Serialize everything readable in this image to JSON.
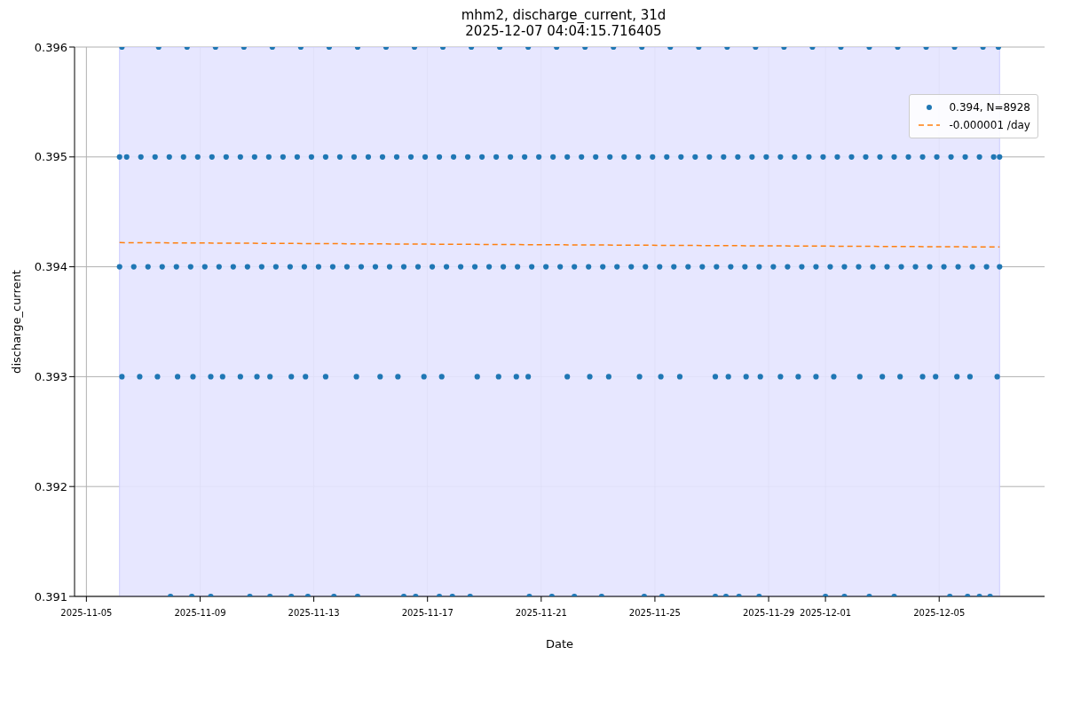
{
  "chart_data": {
    "type": "scatter",
    "title": "mhm2, discharge_current, 31d",
    "subtitle": "2025-12-07 04:04:15.716405",
    "xlabel": "Date",
    "ylabel": "discharge_current",
    "xlim": [
      "2025-11-04T14:00",
      "2025-12-08T17:00"
    ],
    "xticks": [
      "2025-11-05",
      "2025-11-09",
      "2025-11-13",
      "2025-11-17",
      "2025-11-21",
      "2025-11-25",
      "2025-11-29",
      "2025-12-01",
      "2025-12-05"
    ],
    "ylim": [
      0.391,
      0.396
    ],
    "yticks": [
      0.391,
      0.392,
      0.393,
      0.394,
      0.395,
      0.396
    ],
    "grid": true,
    "legend": "top right",
    "marker": "circle",
    "bands": [
      {
        "axis": "x",
        "from": "2025-11-06T04:00",
        "to": "2025-12-07T03:00",
        "color": "#e4e4ff"
      }
    ],
    "series": [
      {
        "name": "0.394, N=8928",
        "color": "#1f77b4",
        "x": [
          "2025-11-06T04:00",
          "2025-11-06T16:00",
          "2025-11-07T04:00",
          "2025-11-07T16:00",
          "2025-11-08T04:00",
          "2025-11-08T16:00",
          "2025-11-09T04:00",
          "2025-11-09T16:00",
          "2025-11-10T04:00",
          "2025-11-10T16:00",
          "2025-11-11T04:00",
          "2025-11-11T16:00",
          "2025-11-12T04:00",
          "2025-11-12T16:00",
          "2025-11-13T04:00",
          "2025-11-13T16:00",
          "2025-11-14T04:00",
          "2025-11-14T16:00",
          "2025-11-15T04:00",
          "2025-11-15T16:00",
          "2025-11-16T04:00",
          "2025-11-16T16:00",
          "2025-11-17T04:00",
          "2025-11-17T16:00",
          "2025-11-18T04:00",
          "2025-11-18T16:00",
          "2025-11-19T04:00",
          "2025-11-19T16:00",
          "2025-11-20T04:00",
          "2025-11-20T16:00",
          "2025-11-21T04:00",
          "2025-11-21T16:00",
          "2025-11-22T04:00",
          "2025-11-22T16:00",
          "2025-11-23T04:00",
          "2025-11-23T16:00",
          "2025-11-24T04:00",
          "2025-11-24T16:00",
          "2025-11-25T04:00",
          "2025-11-25T16:00",
          "2025-11-26T04:00",
          "2025-11-26T16:00",
          "2025-11-27T04:00",
          "2025-11-27T16:00",
          "2025-11-28T04:00",
          "2025-11-28T16:00",
          "2025-11-29T04:00",
          "2025-11-29T16:00",
          "2025-11-30T04:00",
          "2025-11-30T16:00",
          "2025-12-01T04:00",
          "2025-12-01T16:00",
          "2025-12-02T04:00",
          "2025-12-02T16:00",
          "2025-12-03T04:00",
          "2025-12-03T16:00",
          "2025-12-04T04:00",
          "2025-12-04T16:00",
          "2025-12-05T04:00",
          "2025-12-05T16:00",
          "2025-12-06T04:00",
          "2025-12-06T16:00",
          "2025-12-07T03:00"
        ],
        "values": [
          0.394,
          0.394,
          0.394,
          0.394,
          0.394,
          0.394,
          0.394,
          0.394,
          0.394,
          0.394,
          0.394,
          0.394,
          0.394,
          0.394,
          0.394,
          0.394,
          0.394,
          0.394,
          0.394,
          0.394,
          0.394,
          0.394,
          0.394,
          0.394,
          0.394,
          0.394,
          0.394,
          0.394,
          0.394,
          0.394,
          0.394,
          0.394,
          0.394,
          0.394,
          0.394,
          0.394,
          0.394,
          0.394,
          0.394,
          0.394,
          0.394,
          0.394,
          0.394,
          0.394,
          0.394,
          0.394,
          0.394,
          0.394,
          0.394,
          0.394,
          0.394,
          0.394,
          0.394,
          0.394,
          0.394,
          0.394,
          0.394,
          0.394,
          0.394,
          0.394,
          0.394,
          0.394,
          0.394
        ]
      },
      {
        "color": "#1f77b4",
        "x": [
          "2025-11-06T04:00",
          "2025-11-06T10:00",
          "2025-11-06T22:00",
          "2025-11-07T10:00",
          "2025-11-07T22:00",
          "2025-11-08T10:00",
          "2025-11-08T22:00",
          "2025-11-09T10:00",
          "2025-11-09T22:00",
          "2025-11-10T10:00",
          "2025-11-10T22:00",
          "2025-11-11T10:00",
          "2025-11-11T22:00",
          "2025-11-12T10:00",
          "2025-11-12T22:00",
          "2025-11-13T10:00",
          "2025-11-13T22:00",
          "2025-11-14T10:00",
          "2025-11-14T22:00",
          "2025-11-15T10:00",
          "2025-11-15T22:00",
          "2025-11-16T10:00",
          "2025-11-16T22:00",
          "2025-11-17T10:00",
          "2025-11-17T22:00",
          "2025-11-18T10:00",
          "2025-11-18T22:00",
          "2025-11-19T10:00",
          "2025-11-19T22:00",
          "2025-11-20T10:00",
          "2025-11-20T22:00",
          "2025-11-21T10:00",
          "2025-11-21T22:00",
          "2025-11-22T10:00",
          "2025-11-22T22:00",
          "2025-11-23T10:00",
          "2025-11-23T22:00",
          "2025-11-24T10:00",
          "2025-11-24T22:00",
          "2025-11-25T10:00",
          "2025-11-25T22:00",
          "2025-11-26T10:00",
          "2025-11-26T22:00",
          "2025-11-27T10:00",
          "2025-11-27T22:00",
          "2025-11-28T10:00",
          "2025-11-28T22:00",
          "2025-11-29T10:00",
          "2025-11-29T22:00",
          "2025-11-30T10:00",
          "2025-11-30T22:00",
          "2025-12-01T10:00",
          "2025-12-01T22:00",
          "2025-12-02T10:00",
          "2025-12-02T22:00",
          "2025-12-03T10:00",
          "2025-12-03T22:00",
          "2025-12-04T10:00",
          "2025-12-04T22:00",
          "2025-12-05T10:00",
          "2025-12-05T22:00",
          "2025-12-06T10:00",
          "2025-12-06T22:00",
          "2025-12-07T03:00"
        ],
        "values": [
          0.395,
          0.395,
          0.395,
          0.395,
          0.395,
          0.395,
          0.395,
          0.395,
          0.395,
          0.395,
          0.395,
          0.395,
          0.395,
          0.395,
          0.395,
          0.395,
          0.395,
          0.395,
          0.395,
          0.395,
          0.395,
          0.395,
          0.395,
          0.395,
          0.395,
          0.395,
          0.395,
          0.395,
          0.395,
          0.395,
          0.395,
          0.395,
          0.395,
          0.395,
          0.395,
          0.395,
          0.395,
          0.395,
          0.395,
          0.395,
          0.395,
          0.395,
          0.395,
          0.395,
          0.395,
          0.395,
          0.395,
          0.395,
          0.395,
          0.395,
          0.395,
          0.395,
          0.395,
          0.395,
          0.395,
          0.395,
          0.395,
          0.395,
          0.395,
          0.395,
          0.395,
          0.395,
          0.395,
          0.395
        ]
      },
      {
        "color": "#1f77b4",
        "x": [
          "2025-11-06T06:00",
          "2025-11-07T13:00",
          "2025-11-08T13:00",
          "2025-11-09T13:00",
          "2025-11-10T13:00",
          "2025-11-11T13:00",
          "2025-11-12T13:00",
          "2025-11-13T13:00",
          "2025-11-14T13:00",
          "2025-11-15T13:00",
          "2025-11-16T13:00",
          "2025-11-17T13:00",
          "2025-11-18T13:00",
          "2025-11-19T13:00",
          "2025-11-20T13:00",
          "2025-11-21T13:00",
          "2025-11-22T13:00",
          "2025-11-23T13:00",
          "2025-11-24T13:00",
          "2025-11-25T13:00",
          "2025-11-26T13:00",
          "2025-11-27T13:00",
          "2025-11-28T13:00",
          "2025-11-29T13:00",
          "2025-11-30T13:00",
          "2025-12-01T13:00",
          "2025-12-02T13:00",
          "2025-12-03T13:00",
          "2025-12-04T13:00",
          "2025-12-05T13:00",
          "2025-12-06T13:00",
          "2025-12-07T02:00"
        ],
        "values": [
          0.396,
          0.396,
          0.396,
          0.396,
          0.396,
          0.396,
          0.396,
          0.396,
          0.396,
          0.396,
          0.396,
          0.396,
          0.396,
          0.396,
          0.396,
          0.396,
          0.396,
          0.396,
          0.396,
          0.396,
          0.396,
          0.396,
          0.396,
          0.396,
          0.396,
          0.396,
          0.396,
          0.396,
          0.396,
          0.396,
          0.396,
          0.396
        ]
      },
      {
        "color": "#1f77b4",
        "x": [
          "2025-11-06T06:00",
          "2025-11-06T21:00",
          "2025-11-07T12:00",
          "2025-11-08T05:00",
          "2025-11-08T18:00",
          "2025-11-09T09:00",
          "2025-11-09T19:00",
          "2025-11-10T10:00",
          "2025-11-11T00:00",
          "2025-11-11T11:00",
          "2025-11-12T05:00",
          "2025-11-12T17:00",
          "2025-11-13T10:00",
          "2025-11-14T12:00",
          "2025-11-15T08:00",
          "2025-11-15T23:00",
          "2025-11-16T21:00",
          "2025-11-17T12:00",
          "2025-11-18T18:00",
          "2025-11-19T12:00",
          "2025-11-20T03:00",
          "2025-11-20T13:00",
          "2025-11-21T22:00",
          "2025-11-22T17:00",
          "2025-11-23T09:00",
          "2025-11-24T11:00",
          "2025-11-25T05:00",
          "2025-11-25T21:00",
          "2025-11-27T03:00",
          "2025-11-27T14:00",
          "2025-11-28T05:00",
          "2025-11-28T17:00",
          "2025-11-29T10:00",
          "2025-11-30T01:00",
          "2025-11-30T16:00",
          "2025-12-01T07:00",
          "2025-12-02T05:00",
          "2025-12-03T00:00",
          "2025-12-03T15:00",
          "2025-12-04T10:00",
          "2025-12-04T21:00",
          "2025-12-05T15:00",
          "2025-12-06T02:00",
          "2025-12-07T01:00"
        ],
        "values": [
          0.393,
          0.393,
          0.393,
          0.393,
          0.393,
          0.393,
          0.393,
          0.393,
          0.393,
          0.393,
          0.393,
          0.393,
          0.393,
          0.393,
          0.393,
          0.393,
          0.393,
          0.393,
          0.393,
          0.393,
          0.393,
          0.393,
          0.393,
          0.393,
          0.393,
          0.393,
          0.393,
          0.393,
          0.393,
          0.393,
          0.393,
          0.393,
          0.393,
          0.393,
          0.393,
          0.393,
          0.393,
          0.393,
          0.393,
          0.393,
          0.393,
          0.393,
          0.393,
          0.393
        ]
      },
      {
        "color": "#1f77b4",
        "x": [
          "2025-11-07T23:00",
          "2025-11-08T17:00",
          "2025-11-09T09:00",
          "2025-11-10T18:00",
          "2025-11-11T11:00",
          "2025-11-12T05:00",
          "2025-11-12T19:00",
          "2025-11-13T17:00",
          "2025-11-14T13:00",
          "2025-11-16T04:00",
          "2025-11-16T14:00",
          "2025-11-17T10:00",
          "2025-11-17T21:00",
          "2025-11-18T12:00",
          "2025-11-20T14:00",
          "2025-11-21T09:00",
          "2025-11-22T04:00",
          "2025-11-23T03:00",
          "2025-11-24T15:00",
          "2025-11-25T06:00",
          "2025-11-27T03:00",
          "2025-11-27T12:00",
          "2025-11-27T23:00",
          "2025-11-28T16:00",
          "2025-12-01T00:00",
          "2025-12-01T16:00",
          "2025-12-02T13:00",
          "2025-12-03T10:00",
          "2025-12-05T09:00",
          "2025-12-06T00:00",
          "2025-12-06T10:00",
          "2025-12-06T19:00"
        ],
        "values": [
          0.391,
          0.391,
          0.391,
          0.391,
          0.391,
          0.391,
          0.391,
          0.391,
          0.391,
          0.391,
          0.391,
          0.391,
          0.391,
          0.391,
          0.391,
          0.391,
          0.391,
          0.391,
          0.391,
          0.391,
          0.391,
          0.391,
          0.391,
          0.391,
          0.391,
          0.391,
          0.391,
          0.391,
          0.391,
          0.391,
          0.391,
          0.391
        ]
      },
      {
        "type": "line",
        "name": "-0.000001 /day",
        "color": "#ff7f0e",
        "line_style": "dashed",
        "marker": "none",
        "x": [
          "2025-11-06T04:00",
          "2025-12-07T03:00"
        ],
        "values": [
          0.39422,
          0.39418
        ]
      }
    ]
  }
}
